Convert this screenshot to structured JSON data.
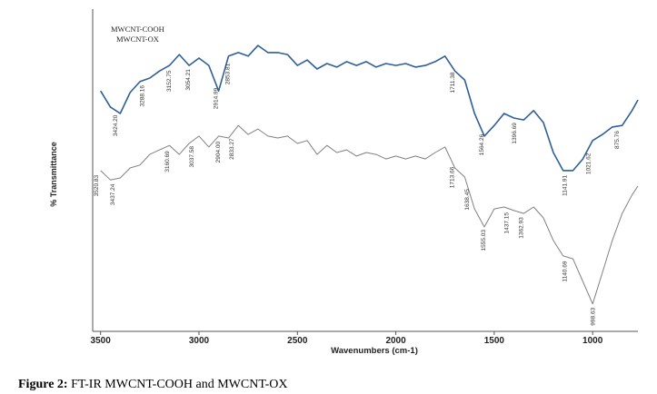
{
  "chart_data": {
    "type": "line",
    "x_label": "Wavenumbers (cm-1)",
    "y_label": "% Transmittance",
    "caption_label": "Figure 2:",
    "caption_text": "FT-IR MWCNT-COOH and MWCNT-OX",
    "xlim": [
      3540,
      770
    ],
    "ylim": [
      0,
      100
    ],
    "xticks": [
      3500,
      3000,
      2500,
      2000,
      1500,
      1000
    ],
    "x": [
      3500,
      3450,
      3400,
      3350,
      3300,
      3250,
      3200,
      3150,
      3100,
      3050,
      3000,
      2950,
      2900,
      2850,
      2800,
      2750,
      2700,
      2650,
      2600,
      2550,
      2500,
      2450,
      2400,
      2350,
      2300,
      2250,
      2200,
      2150,
      2100,
      2050,
      2000,
      1950,
      1900,
      1850,
      1800,
      1750,
      1700,
      1650,
      1600,
      1550,
      1500,
      1450,
      1400,
      1350,
      1300,
      1250,
      1200,
      1150,
      1100,
      1050,
      1000,
      950,
      900,
      850,
      800,
      770
    ],
    "series": [
      {
        "name": "MWCNT-COOH",
        "color": "#2f5f98",
        "values": [
          74.6,
          69.6,
          67.6,
          74.1,
          77.5,
          78.6,
          80.8,
          82.5,
          85.9,
          82.5,
          84.8,
          82.5,
          74.6,
          85.4,
          86.5,
          85.4,
          88.7,
          86.5,
          86.5,
          85.9,
          82.5,
          84.2,
          81.4,
          83.1,
          82.0,
          83.7,
          82.5,
          83.7,
          82.0,
          83.1,
          82.5,
          83.1,
          82.0,
          82.5,
          83.7,
          85.4,
          80.8,
          78.0,
          67.6,
          60.6,
          63.9,
          67.6,
          66.2,
          65.6,
          68.5,
          64.8,
          55.5,
          49.9,
          49.9,
          53.5,
          59.2,
          61.1,
          63.4,
          63.9,
          68.5,
          71.8
        ],
        "peaks": [
          3424.2,
          3288.16,
          3152.75,
          3054.21,
          2914.99,
          2853.81,
          1711.38,
          1564.26,
          1396.69,
          1141.91,
          1021.62,
          875.76
        ],
        "peak_labels": [
          "3424.20",
          "3288.16",
          "3152.75",
          "3054.21",
          "2914.99",
          "2853.81",
          "1711.38",
          "1564.26",
          "1396.69",
          "1141.91",
          "1021.62",
          "875.76"
        ]
      },
      {
        "name": "MWCNT-OX",
        "color": "#808080",
        "values": [
          49.9,
          47.0,
          47.6,
          50.7,
          51.6,
          54.9,
          56.3,
          57.7,
          54.9,
          58.3,
          60.6,
          57.2,
          60.6,
          60.0,
          63.9,
          61.1,
          62.8,
          60.6,
          60.0,
          60.6,
          58.3,
          59.2,
          54.9,
          57.7,
          55.5,
          56.3,
          54.4,
          55.5,
          54.9,
          53.5,
          54.4,
          53.5,
          54.4,
          53.5,
          55.5,
          57.2,
          50.7,
          47.9,
          38.0,
          32.4,
          38.0,
          38.6,
          37.5,
          36.6,
          38.6,
          35.2,
          28.2,
          23.4,
          22.5,
          15.5,
          8.5,
          18.3,
          28.2,
          36.6,
          42.3,
          45.1
        ],
        "peaks": [
          3520.83,
          3437.24,
          3160.69,
          3037.58,
          2904.0,
          2833.27,
          1713.66,
          1638.45,
          1555.03,
          1437.15,
          1362.93,
          1140.69,
          998.63
        ],
        "peak_labels": [
          "3520.83",
          "3437.24",
          "3160.69",
          "3037.58",
          "2904.00",
          "2833.27",
          "1713.66",
          "1638.45",
          "1555.03",
          "1437.15",
          "1362.93",
          "1140.69",
          "998.63"
        ]
      }
    ]
  }
}
